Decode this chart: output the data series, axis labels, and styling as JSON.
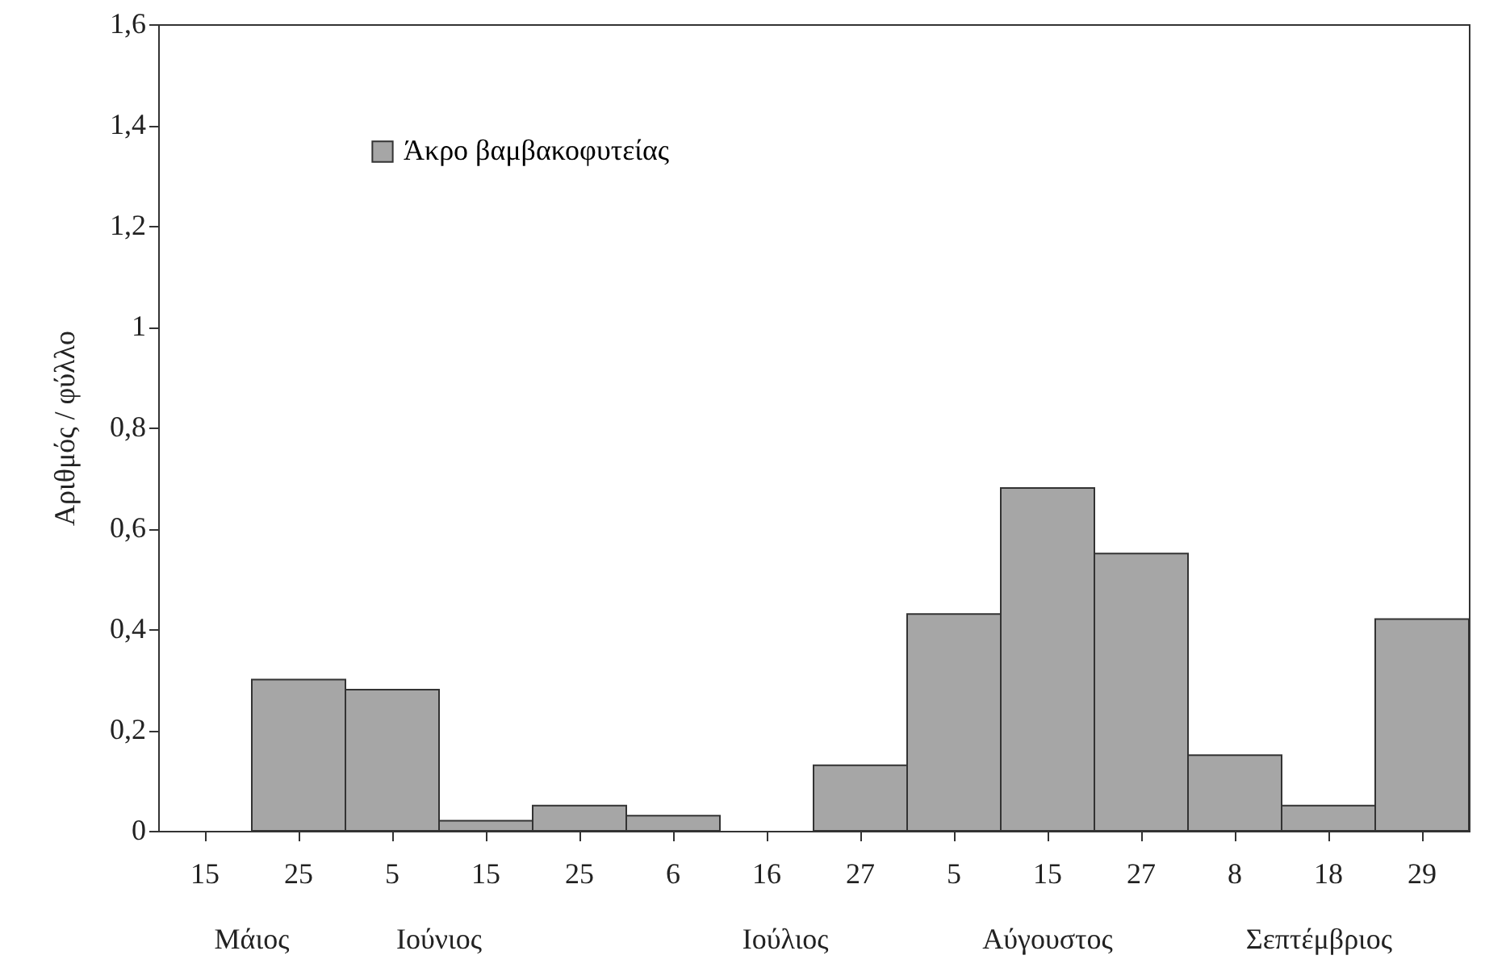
{
  "chart_data": {
    "type": "bar",
    "ylabel": "Αριθμός / φύλλο",
    "categories": [
      "15",
      "25",
      "5",
      "15",
      "25",
      "6",
      "16",
      "27",
      "5",
      "15",
      "27",
      "8",
      "18",
      "29"
    ],
    "series": [
      {
        "name": "Άκρο βαμβακοφυτείας",
        "color": "#a6a6a6",
        "values": [
          0,
          0.3,
          0.28,
          0.02,
          0.05,
          0.03,
          0,
          0.13,
          0.43,
          0.68,
          0.55,
          0.15,
          0.05,
          0.42
        ]
      }
    ],
    "ylim": [
      0,
      1.6
    ],
    "yticks": [
      0,
      {
        "value": 0.2,
        "label": "0,2"
      },
      {
        "value": 0.4,
        "label": "0,4"
      },
      {
        "value": 0.6,
        "label": "0,6"
      },
      {
        "value": 0.8,
        "label": "0,8"
      },
      1,
      {
        "value": 1.2,
        "label": "1,2"
      },
      {
        "value": 1.4,
        "label": "1,4"
      },
      {
        "value": 1.6,
        "label": "1,6"
      }
    ],
    "annotations": [
      "Μάιος",
      "Ιούνιος",
      "Ιούλιος",
      "Αύγουστος",
      "Σεπτέμβριος"
    ],
    "grid": false,
    "legend": "top left"
  }
}
